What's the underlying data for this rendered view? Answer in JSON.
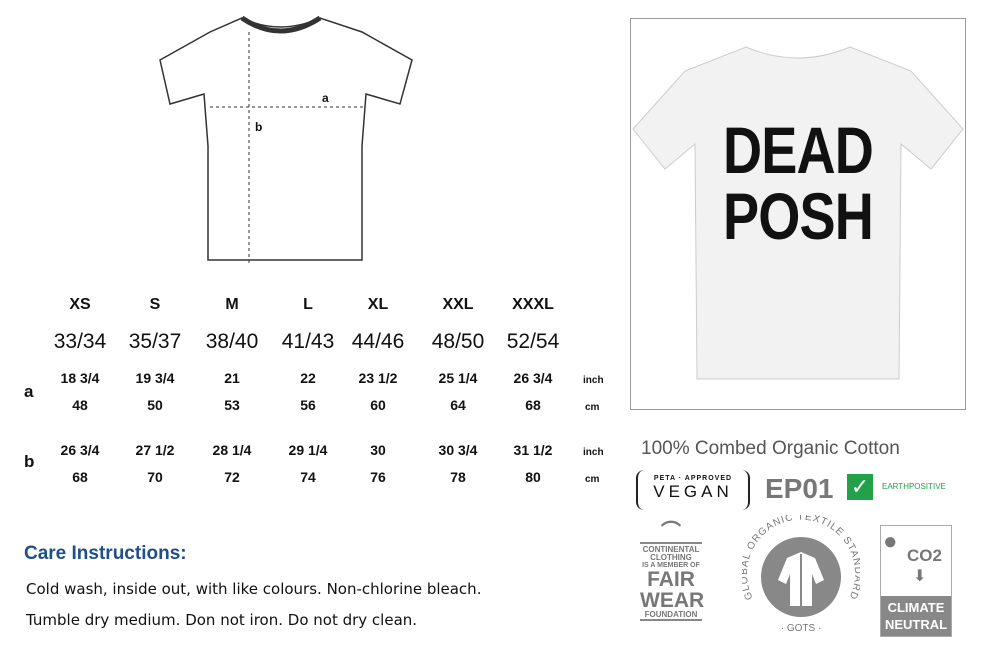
{
  "diagram": {
    "label_a": "a",
    "label_b": "b"
  },
  "sizes": [
    "XS",
    "S",
    "M",
    "L",
    "XL",
    "XXL",
    "XXXL"
  ],
  "eu_sizes": [
    "33/34",
    "35/37",
    "38/40",
    "41/43",
    "44/46",
    "48/50",
    "52/54"
  ],
  "rows": [
    {
      "label": "a",
      "inch": [
        "18 3/4",
        "19 3/4",
        "21",
        "22",
        "23 1/2",
        "25 1/4",
        "26 3/4"
      ],
      "cm": [
        "48",
        "50",
        "53",
        "56",
        "60",
        "64",
        "68"
      ]
    },
    {
      "label": "b",
      "inch": [
        "26 3/4",
        "27 1/2",
        "28 1/4",
        "29 1/4",
        "30",
        "30 3/4",
        "31 1/2"
      ],
      "cm": [
        "68",
        "70",
        "72",
        "74",
        "76",
        "78",
        "80"
      ]
    }
  ],
  "units": {
    "inch": "inch",
    "cm": "cm"
  },
  "care": {
    "title": "Care Instructions:",
    "line1": "Cold wash, inside out, with like colours. Non-chlorine bleach.",
    "line2": "Tumble dry medium. Don not iron. Do not dry clean."
  },
  "product": {
    "print_line1": "DEAD",
    "print_line2": "POSH"
  },
  "fabric": "100% Combed Organic Cotton",
  "badges": {
    "peta": "PETA · APPROVED",
    "vegan": "VEGAN",
    "ep": "EP01",
    "earthpositive": "EARTHPOSITIVE",
    "fairwear": [
      "CONTINENTAL",
      "CLOTHING",
      "IS A MEMBER OF",
      "FAIR",
      "WEAR",
      "FOUNDATION"
    ],
    "gots_ring": "GLOBAL ORGANIC TEXTILE STANDARD",
    "gots": "· GOTS ·",
    "co2": "CO2",
    "climate": "CLIMATE",
    "neutral": "NEUTRAL"
  },
  "colors": {
    "care_title": "#1f4e8c",
    "earthpositive_green": "#22a04a",
    "logo_grey": "#808080"
  }
}
